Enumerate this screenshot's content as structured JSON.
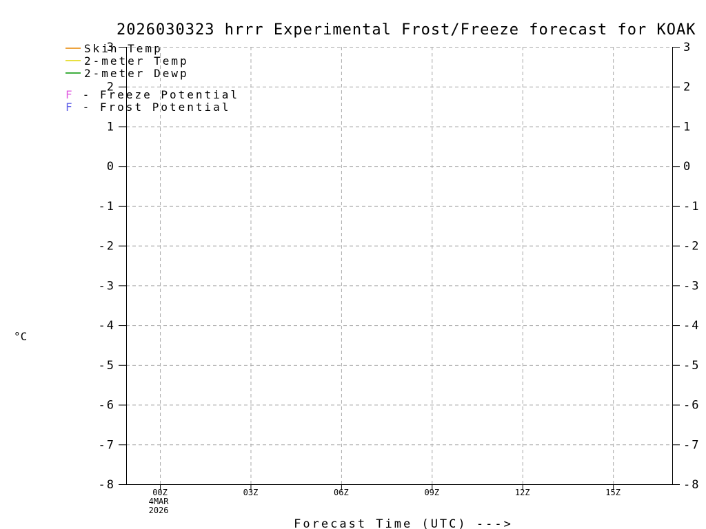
{
  "title": "2026030323 hrrr Experimental Frost/Freeze forecast for KOAK",
  "legend": {
    "items": [
      {
        "type": "line",
        "label": "Skin Temp",
        "color": "#eda33f"
      },
      {
        "type": "line",
        "label": "2-meter Temp",
        "color": "#e8e040"
      },
      {
        "type": "line",
        "label": "2-meter Dewp",
        "color": "#3fae3f"
      },
      {
        "type": "marker",
        "symbol": "F",
        "label": "- Freeze Potential",
        "color": "#e05ce0"
      },
      {
        "type": "marker",
        "symbol": "F",
        "label": "- Frost Potential",
        "color": "#6464e8"
      }
    ]
  },
  "chart_data": {
    "type": "line",
    "title": "2026030323 hrrr Experimental Frost/Freeze forecast for KOAK",
    "ylabel": "°C",
    "xlabel": "Forecast Time (UTC) --->",
    "ylim": [
      -8,
      3
    ],
    "yticks": [
      3,
      2,
      1,
      0,
      -1,
      -2,
      -3,
      -4,
      -5,
      -6,
      -7,
      -8
    ],
    "xlim_hours": [
      -1.12,
      16.96
    ],
    "xticks": [
      {
        "hour": 0,
        "label": "00Z",
        "sublabels": [
          "4MAR",
          "2026"
        ]
      },
      {
        "hour": 3,
        "label": "03Z",
        "sublabels": []
      },
      {
        "hour": 6,
        "label": "06Z",
        "sublabels": []
      },
      {
        "hour": 9,
        "label": "09Z",
        "sublabels": []
      },
      {
        "hour": 12,
        "label": "12Z",
        "sublabels": []
      },
      {
        "hour": 15,
        "label": "15Z",
        "sublabels": []
      }
    ],
    "grid": true,
    "grid_color": "#a8a8a8",
    "frame_color": "#000000",
    "series": [
      {
        "name": "Skin Temp",
        "color": "#eda33f",
        "points": []
      },
      {
        "name": "2-meter Temp",
        "color": "#e8e040",
        "points": []
      },
      {
        "name": "2-meter Dewp",
        "color": "#3fae3f",
        "points": []
      }
    ]
  }
}
